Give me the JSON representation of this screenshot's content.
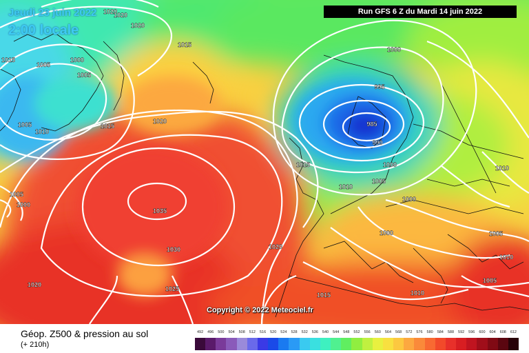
{
  "header": {
    "date_line": "Jeudi 23 juin 2022",
    "time_line": "2:00 locale",
    "run_info": "Run GFS 6 Z du Mardi 14 juin 2022"
  },
  "copyright": "Copyright © 2022 Meteociel.fr",
  "legend": {
    "title": "Géop. Z500 & pression au sol",
    "subtitle": "(+ 210h)",
    "scale_values": [
      "492",
      "496",
      "500",
      "504",
      "508",
      "512",
      "516",
      "520",
      "524",
      "528",
      "532",
      "536",
      "540",
      "544",
      "548",
      "552",
      "556",
      "560",
      "564",
      "568",
      "572",
      "576",
      "580",
      "584",
      "588",
      "592",
      "596",
      "600",
      "604",
      "608",
      "612"
    ],
    "scale_colors": [
      "#3a0a3a",
      "#5a1a6a",
      "#7a3a9a",
      "#8a5aba",
      "#9a8ada",
      "#6a6aea",
      "#3a3ae6",
      "#1a4ae8",
      "#1a7af0",
      "#2a9af5",
      "#3acaf0",
      "#3ae0e0",
      "#3ef0c0",
      "#50f090",
      "#60ee60",
      "#90ee40",
      "#c0f040",
      "#e8f040",
      "#f8e040",
      "#fcc840",
      "#fca840",
      "#fa8a3a",
      "#f86a32",
      "#f24a2a",
      "#e8302a",
      "#d81e22",
      "#c01420",
      "#a00e1a",
      "#800a14",
      "#5a0610",
      "#280208"
    ]
  },
  "isobars": [
    {
      "value": "1015",
      "id": "label-1015-tl"
    },
    {
      "value": "1020",
      "id": "label-1020-t1"
    },
    {
      "value": "1020",
      "id": "label-1020-t2"
    },
    {
      "value": "1020",
      "id": "label-1020-t3"
    },
    {
      "value": "1015",
      "id": "label-1015-t"
    },
    {
      "value": "1000",
      "id": "label-1000-a"
    },
    {
      "value": "1005",
      "id": "label-1005-a"
    },
    {
      "value": "1005",
      "id": "label-1005-b"
    },
    {
      "value": "1005",
      "id": "label-1005-c"
    },
    {
      "value": "1010",
      "id": "label-1010-a"
    },
    {
      "value": "1015",
      "id": "label-1015-m"
    },
    {
      "value": "1020",
      "id": "label-1020-m"
    },
    {
      "value": "1035",
      "id": "label-1035"
    },
    {
      "value": "1030",
      "id": "label-1030"
    },
    {
      "value": "1025",
      "id": "label-1025"
    },
    {
      "value": "1020",
      "id": "label-1020-bl"
    },
    {
      "value": "1005",
      "id": "label-1005-l"
    },
    {
      "value": "1000",
      "id": "label-1000-l"
    },
    {
      "value": "1000",
      "id": "label-1000-ne"
    },
    {
      "value": "995",
      "id": "label-995"
    },
    {
      "value": "985",
      "id": "label-985"
    },
    {
      "value": "990",
      "id": "label-990"
    },
    {
      "value": "1000",
      "id": "label-1000-c"
    },
    {
      "value": "1015",
      "id": "label-1015-c"
    },
    {
      "value": "1010",
      "id": "label-1010-c"
    },
    {
      "value": "1005",
      "id": "label-1005-c2"
    },
    {
      "value": "1000",
      "id": "label-1000-c2"
    },
    {
      "value": "1000",
      "id": "label-1000-c3"
    },
    {
      "value": "1010",
      "id": "label-1010-e"
    },
    {
      "value": "1005",
      "id": "label-1005-e"
    },
    {
      "value": "1010",
      "id": "label-1010-e2"
    },
    {
      "value": "1005",
      "id": "label-1005-se"
    },
    {
      "value": "1010",
      "id": "label-1010-s"
    },
    {
      "value": "1015",
      "id": "label-1015-s"
    },
    {
      "value": "1020",
      "id": "label-1020-s"
    }
  ]
}
